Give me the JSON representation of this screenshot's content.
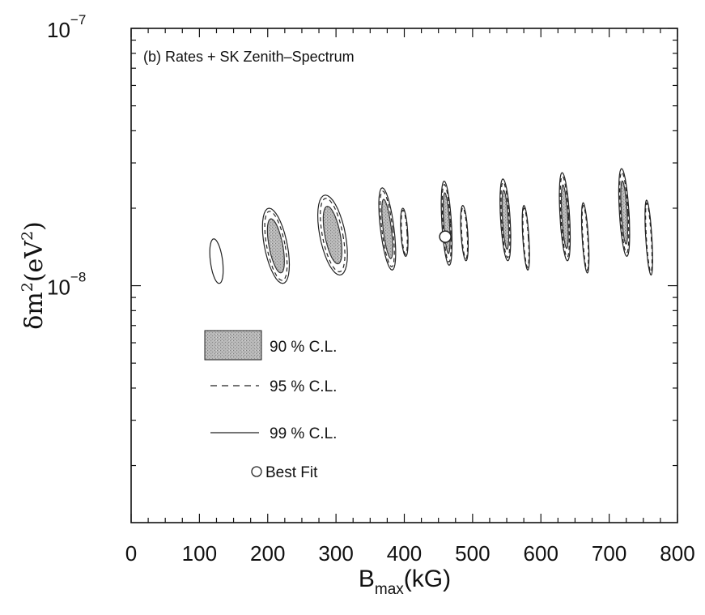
{
  "chart_data": {
    "type": "contour",
    "panel_label": "(b) Rates + SK Zenith–Spectrum",
    "x_axis": {
      "label_main": "B",
      "label_sub": "max",
      "label_unit": "(kG)",
      "range": [
        0,
        800
      ],
      "ticks": [
        0,
        100,
        200,
        300,
        400,
        500,
        600,
        700,
        800
      ],
      "tick_labels": [
        "0",
        "100",
        "200",
        "300",
        "400",
        "500",
        "600",
        "700",
        "800"
      ]
    },
    "y_axis": {
      "label_delta": "δm",
      "label_exp": "2",
      "label_open": "(eV",
      "label_exp2": "2",
      "label_close": ")",
      "scale": "log",
      "range": [
        1.2e-09,
        1e-07
      ],
      "major_ticks": [
        1e-08,
        1e-07
      ],
      "tick_label_base": "10",
      "tick_label_exps": [
        "−8",
        "−7"
      ]
    },
    "legend": {
      "placement": "lower-left",
      "entries": [
        {
          "key": "cl90",
          "label": "90 % C.L.",
          "style": "shaded"
        },
        {
          "key": "cl95",
          "label": "95 % C.L.",
          "style": "dashed"
        },
        {
          "key": "cl99",
          "label": "99 % C.L.",
          "style": "solid"
        },
        {
          "key": "best",
          "label": "Best Fit",
          "style": "open-circle"
        }
      ]
    },
    "best_fit": {
      "x": 460,
      "y": 1.55e-08
    },
    "regions": [
      {
        "x": 125,
        "y_min": 1.02e-08,
        "y_max": 1.52e-08,
        "width": 18,
        "lean": 0.2,
        "levels": [
          "99"
        ]
      },
      {
        "x": 212,
        "y_min": 1.02e-08,
        "y_max": 2e-08,
        "width": 34,
        "lean": 0.3,
        "levels": [
          "90",
          "95",
          "99"
        ]
      },
      {
        "x": 295,
        "y_min": 1.1e-08,
        "y_max": 2.25e-08,
        "width": 38,
        "lean": 0.3,
        "levels": [
          "90",
          "95",
          "99"
        ]
      },
      {
        "x": 375,
        "y_min": 1.15e-08,
        "y_max": 2.4e-08,
        "width": 20,
        "lean": 0.2,
        "levels": [
          "90",
          "95",
          "99"
        ]
      },
      {
        "x": 400,
        "y_min": 1.3e-08,
        "y_max": 2e-08,
        "width": 10,
        "lean": 0.1,
        "levels": [
          "95",
          "99"
        ]
      },
      {
        "x": 462,
        "y_min": 1.2e-08,
        "y_max": 2.55e-08,
        "width": 14,
        "lean": 0.1,
        "levels": [
          "90",
          "95",
          "99"
        ]
      },
      {
        "x": 488,
        "y_min": 1.25e-08,
        "y_max": 2.05e-08,
        "width": 10,
        "lean": 0.1,
        "levels": [
          "95",
          "99"
        ]
      },
      {
        "x": 548,
        "y_min": 1.25e-08,
        "y_max": 2.6e-08,
        "width": 14,
        "lean": 0.1,
        "levels": [
          "90",
          "95",
          "99"
        ]
      },
      {
        "x": 578,
        "y_min": 1.15e-08,
        "y_max": 2.05e-08,
        "width": 9,
        "lean": 0.1,
        "levels": [
          "95",
          "99"
        ]
      },
      {
        "x": 635,
        "y_min": 1.25e-08,
        "y_max": 2.75e-08,
        "width": 14,
        "lean": 0.1,
        "levels": [
          "90",
          "95",
          "99"
        ]
      },
      {
        "x": 665,
        "y_min": 1.12e-08,
        "y_max": 2.1e-08,
        "width": 9,
        "lean": 0.1,
        "levels": [
          "95",
          "99"
        ]
      },
      {
        "x": 722,
        "y_min": 1.3e-08,
        "y_max": 2.85e-08,
        "width": 14,
        "lean": 0.1,
        "levels": [
          "90",
          "95",
          "99"
        ]
      },
      {
        "x": 758,
        "y_min": 1.1e-08,
        "y_max": 2.15e-08,
        "width": 9,
        "lean": 0.1,
        "levels": [
          "95",
          "99"
        ]
      }
    ]
  }
}
